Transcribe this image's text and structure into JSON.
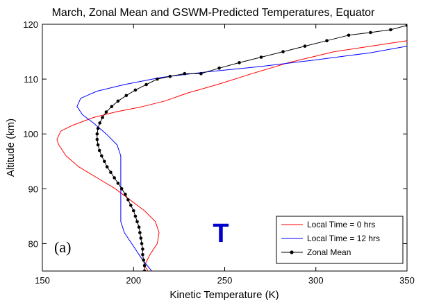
{
  "chart_data": {
    "type": "line",
    "title": "March, Zonal Mean and GSWM-Predicted Temperatures, Equator",
    "xlabel": "Kinetic Temperature (K)",
    "ylabel": "Altitude (km)",
    "xlim": [
      150,
      350
    ],
    "ylim": [
      75,
      120
    ],
    "xticks": [
      150,
      200,
      250,
      300,
      350
    ],
    "yticks": [
      80,
      90,
      100,
      110,
      120
    ],
    "grid": false,
    "legend_position": "bottom-right",
    "panel_label": "(a)",
    "annotation": "T",
    "annotation_color": "#0000cc",
    "series": [
      {
        "name": "Local Time = 0 hrs",
        "color": "#ff0000",
        "marker": "none",
        "points": [
          [
            208,
            75
          ],
          [
            206,
            76
          ],
          [
            209,
            78
          ],
          [
            213,
            80
          ],
          [
            214,
            82
          ],
          [
            212,
            84
          ],
          [
            206,
            86
          ],
          [
            198,
            88
          ],
          [
            190,
            90
          ],
          [
            180,
            92
          ],
          [
            170,
            94
          ],
          [
            163,
            96
          ],
          [
            159,
            98
          ],
          [
            158,
            99
          ],
          [
            160,
            100.5
          ],
          [
            166,
            101.5
          ],
          [
            178,
            103
          ],
          [
            190,
            104
          ],
          [
            205,
            105
          ],
          [
            217,
            106
          ],
          [
            230,
            107.5
          ],
          [
            246,
            109
          ],
          [
            265,
            111
          ],
          [
            285,
            113
          ],
          [
            310,
            115
          ],
          [
            350,
            117
          ]
        ]
      },
      {
        "name": "Local Time = 12 hrs",
        "color": "#0000ff",
        "marker": "none",
        "points": [
          [
            210,
            75
          ],
          [
            205,
            77
          ],
          [
            199,
            80
          ],
          [
            195,
            82
          ],
          [
            193,
            84
          ],
          [
            193,
            88
          ],
          [
            193,
            92
          ],
          [
            193,
            96
          ],
          [
            191,
            98
          ],
          [
            185,
            100
          ],
          [
            178,
            102
          ],
          [
            172,
            103.5
          ],
          [
            169,
            105
          ],
          [
            171,
            106.5
          ],
          [
            180,
            107.8
          ],
          [
            195,
            109
          ],
          [
            215,
            110.3
          ],
          [
            240,
            111.3
          ],
          [
            270,
            112.3
          ],
          [
            300,
            113.5
          ],
          [
            330,
            114.8
          ],
          [
            350,
            116
          ]
        ]
      },
      {
        "name": "Zonal Mean",
        "color": "#000000",
        "marker": "circle",
        "points": [
          [
            206,
            75
          ],
          [
            206,
            76
          ],
          [
            205.5,
            77
          ],
          [
            205,
            78
          ],
          [
            205,
            79
          ],
          [
            204.5,
            80
          ],
          [
            204,
            81
          ],
          [
            203.5,
            82
          ],
          [
            203,
            83
          ],
          [
            202,
            84
          ],
          [
            201,
            85
          ],
          [
            200,
            86
          ],
          [
            198.5,
            87
          ],
          [
            197,
            88
          ],
          [
            195.5,
            89
          ],
          [
            193.5,
            90
          ],
          [
            191.5,
            91
          ],
          [
            189.5,
            92
          ],
          [
            187.5,
            93
          ],
          [
            185.5,
            94
          ],
          [
            184,
            95
          ],
          [
            182.5,
            96
          ],
          [
            181.3,
            97
          ],
          [
            180.5,
            98
          ],
          [
            180,
            99
          ],
          [
            180,
            100
          ],
          [
            180.5,
            101
          ],
          [
            181.5,
            102
          ],
          [
            183,
            103
          ],
          [
            185,
            104
          ],
          [
            188,
            105
          ],
          [
            191.5,
            106
          ],
          [
            196,
            107
          ],
          [
            201,
            108
          ],
          [
            207,
            109
          ],
          [
            213,
            110
          ],
          [
            220,
            110.5
          ],
          [
            228,
            111
          ],
          [
            237,
            111
          ],
          [
            247,
            112
          ],
          [
            258,
            113
          ],
          [
            270,
            114
          ],
          [
            282,
            115
          ],
          [
            294,
            116
          ],
          [
            306,
            117
          ],
          [
            318,
            118
          ],
          [
            330,
            118.5
          ],
          [
            341,
            119
          ],
          [
            350,
            119.8
          ]
        ]
      }
    ]
  }
}
